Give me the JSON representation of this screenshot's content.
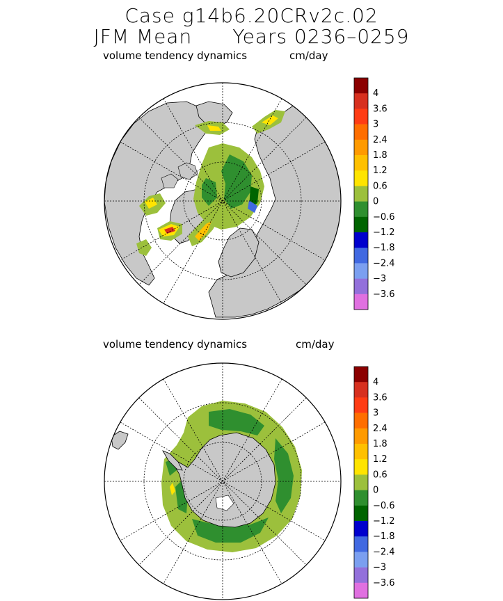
{
  "header": {
    "case_line": "Case g14b6.20CRv2c.02",
    "season": "JFM Mean",
    "years": "Years 0236–0259"
  },
  "panels": [
    {
      "id": "north",
      "hemisphere": "Northern",
      "variable": "volume tendency dynamics",
      "units": "cm/day"
    },
    {
      "id": "south",
      "hemisphere": "Southern",
      "variable": "volume tendency dynamics",
      "units": "cm/day"
    }
  ],
  "colorbar": {
    "tick_labels": [
      "4",
      "3.6",
      "3",
      "2.4",
      "1.8",
      "1.2",
      "0.6",
      "0",
      "−0.6",
      "−1.2",
      "−1.8",
      "−2.4",
      "−3",
      "−3.6"
    ],
    "colors": [
      "#8b0000",
      "#d7301f",
      "#ff3c14",
      "#ff6e00",
      "#ff9a00",
      "#ffc000",
      "#ffe400",
      "#9cc03c",
      "#2f8f2f",
      "#006400",
      "#0000cd",
      "#4169e1",
      "#7b9ff0",
      "#9370db",
      "#e070e0"
    ]
  },
  "palette": {
    "land": "#c8c8c8",
    "ocean": "#ffffff",
    "grid": "#000000"
  }
}
